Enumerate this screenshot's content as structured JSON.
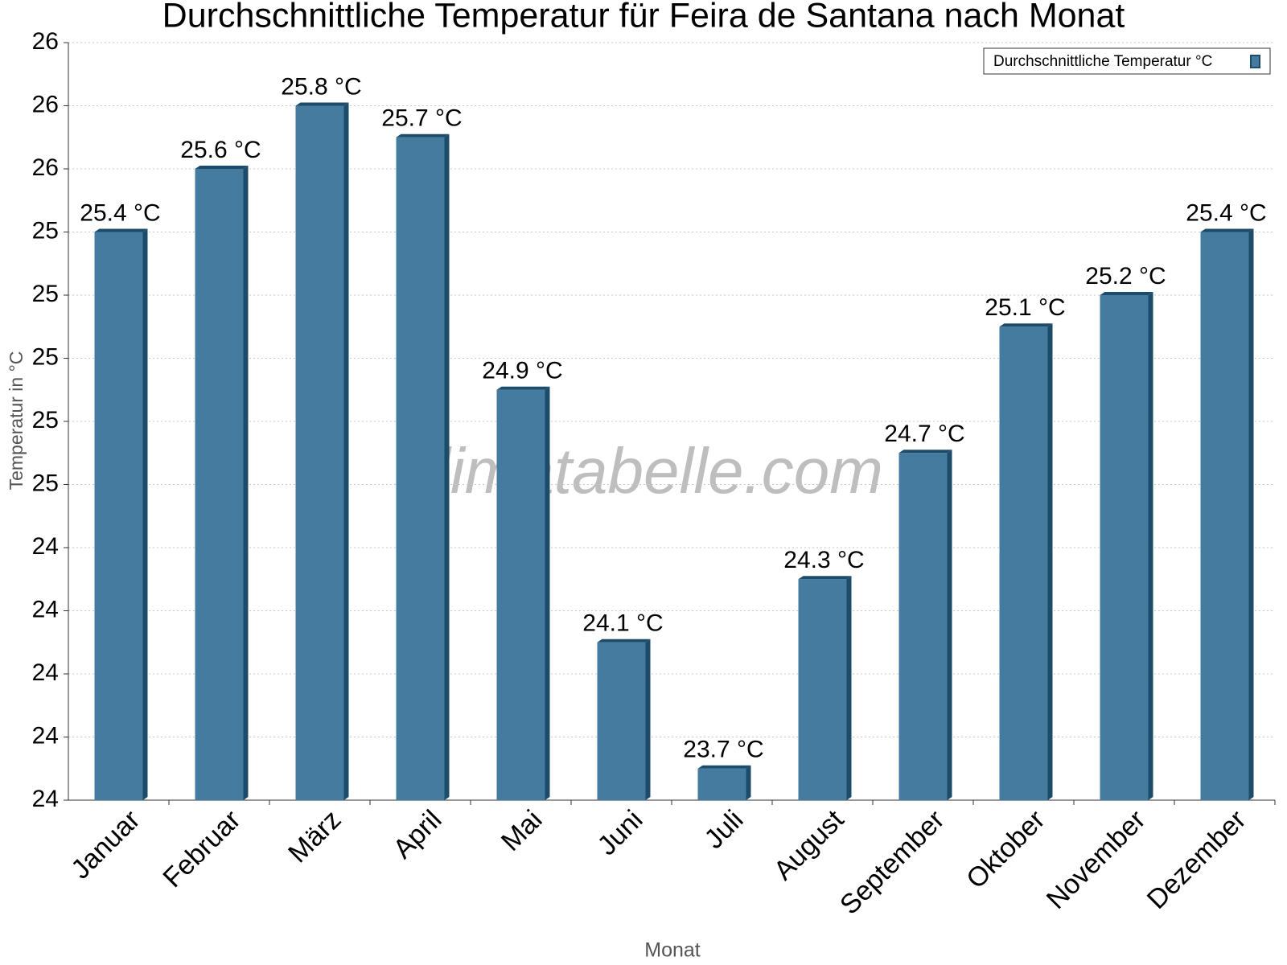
{
  "chart_data": {
    "type": "bar",
    "title": "Durchschnittliche Temperatur für Feira de Santana nach Monat",
    "x_label": "Monat",
    "y_label": "Temperatur in °C",
    "watermark": "klimatabelle.com",
    "categories": [
      "Januar",
      "Februar",
      "März",
      "April",
      "Mai",
      "Juni",
      "Juli",
      "August",
      "September",
      "Oktober",
      "November",
      "Dezember"
    ],
    "series": [
      {
        "name": "Durchschnittliche Temperatur °C",
        "color": "#447b9f",
        "values": [
          25.4,
          25.6,
          25.8,
          25.7,
          24.9,
          24.1,
          23.7,
          24.3,
          24.7,
          25.1,
          25.2,
          25.4
        ],
        "value_labels": [
          "25.4 °C",
          "25.6 °C",
          "25.8 °C",
          "25.7 °C",
          "24.9 °C",
          "24.1 °C",
          "23.7 °C",
          "24.3 °C",
          "24.7 °C",
          "25.1 °C",
          "25.2 °C",
          "25.4 °C"
        ]
      }
    ],
    "ylim": [
      23.6,
      26.0
    ],
    "yticks": [
      {
        "value": 23.6,
        "label": "24"
      },
      {
        "value": 23.8,
        "label": "24"
      },
      {
        "value": 24.0,
        "label": "24"
      },
      {
        "value": 24.2,
        "label": "24"
      },
      {
        "value": 24.4,
        "label": "24"
      },
      {
        "value": 24.6,
        "label": "25"
      },
      {
        "value": 24.8,
        "label": "25"
      },
      {
        "value": 25.0,
        "label": "25"
      },
      {
        "value": 25.2,
        "label": "25"
      },
      {
        "value": 25.4,
        "label": "25"
      },
      {
        "value": 25.6,
        "label": "26"
      },
      {
        "value": 25.8,
        "label": "26"
      },
      {
        "value": 26.0,
        "label": "26"
      }
    ],
    "grid": true,
    "legend": "upper right"
  }
}
